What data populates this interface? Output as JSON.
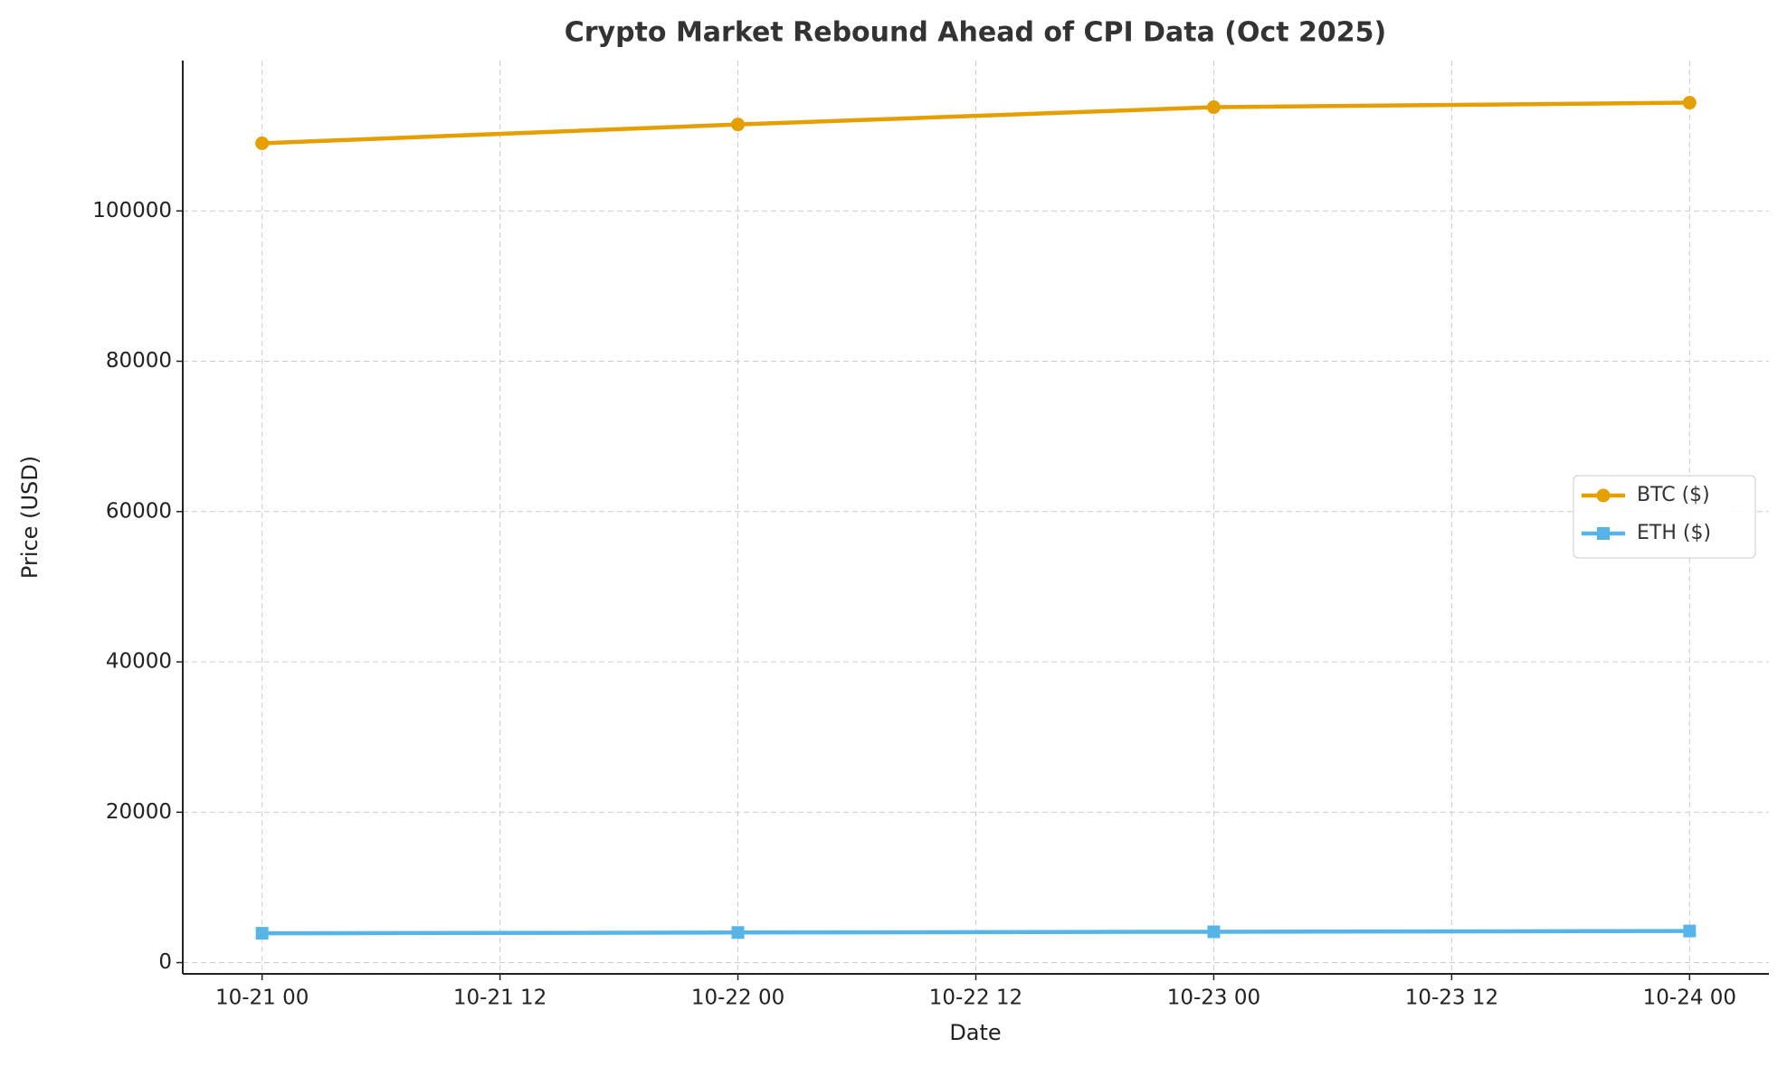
{
  "chart_data": {
    "type": "line",
    "title": "Crypto Market Rebound Ahead of CPI Data (Oct 2025)",
    "x_label": "Date",
    "y_label": "Price (USD)",
    "x": [
      "10-21 00",
      "10-22 00",
      "10-23 00",
      "10-24 00"
    ],
    "series": [
      {
        "name": "BTC ($)",
        "color": "#E69F00",
        "marker": "circle",
        "values": [
          109000,
          111500,
          113800,
          114400
        ]
      },
      {
        "name": "ETH ($)",
        "color": "#56B4E9",
        "marker": "square",
        "values": [
          3900,
          4000,
          4100,
          4200
        ]
      }
    ],
    "xlim": [
      "10-20 20",
      "10-24 04"
    ],
    "xticks": [
      "10-21 00",
      "10-21 12",
      "10-22 00",
      "10-22 12",
      "10-23 00",
      "10-23 12",
      "10-24 00"
    ],
    "ylim": [
      -1500,
      120000
    ],
    "yticks": [
      0,
      20000,
      40000,
      60000,
      80000,
      100000
    ],
    "grid": true,
    "legend_position": "right"
  }
}
